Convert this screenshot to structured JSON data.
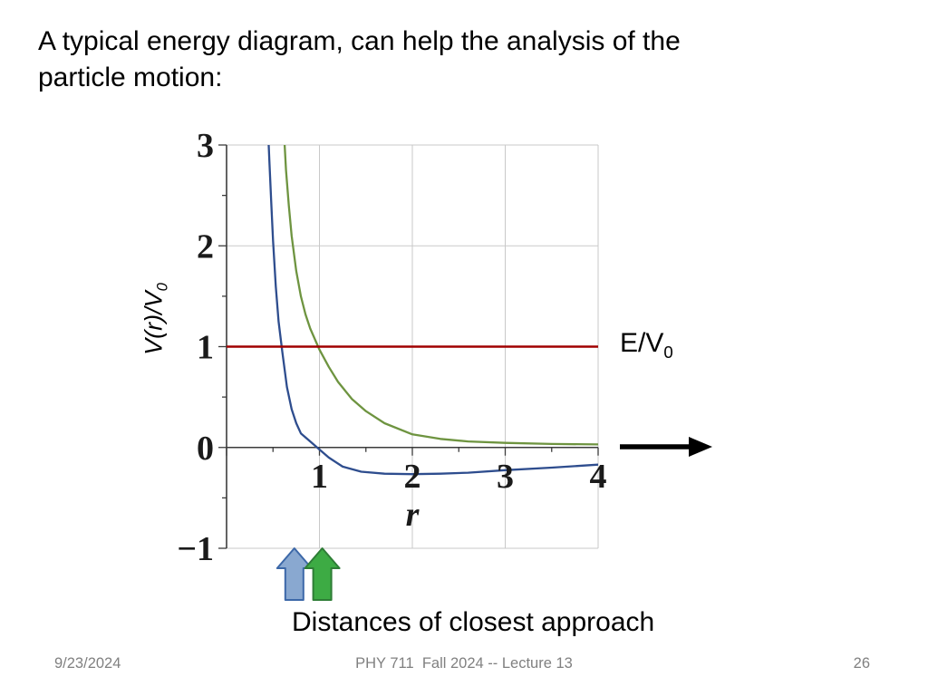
{
  "slide": {
    "title_lines": [
      "A typical energy diagram, can help the analysis of the",
      "particle motion:"
    ],
    "caption": "Distances of closest approach",
    "energy_label": {
      "main": "E/V",
      "sub": "0"
    },
    "footer": {
      "date": "9/23/2024",
      "course": "PHY 711  Fall 2024 -- Lecture 13",
      "page": "26"
    }
  },
  "chart_data": {
    "type": "line",
    "title": "",
    "xlabel": "r",
    "ylabel": "V(r)/V0",
    "ylabel_display": {
      "main": "V(r)/V",
      "sub": "0"
    },
    "xlim": [
      0,
      4
    ],
    "ylim": [
      -1,
      3
    ],
    "x_ticks": [
      1,
      2,
      3,
      4
    ],
    "y_ticks": [
      3,
      2,
      1,
      0,
      -1
    ],
    "grid": true,
    "legend": "none",
    "series": [
      {
        "name": "repulsive-potential-curve-green",
        "color": "#6E9440",
        "width": 2.3,
        "x": [
          0.6,
          0.62,
          0.64,
          0.67,
          0.7,
          0.75,
          0.8,
          0.85,
          0.9,
          1.0,
          1.1,
          1.2,
          1.35,
          1.5,
          1.7,
          2.0,
          2.3,
          2.6,
          3.0,
          3.5,
          4.0
        ],
        "y": [
          3.45,
          3.1,
          2.75,
          2.4,
          2.1,
          1.75,
          1.5,
          1.32,
          1.18,
          0.97,
          0.8,
          0.65,
          0.48,
          0.36,
          0.24,
          0.13,
          0.085,
          0.06,
          0.045,
          0.035,
          0.03
        ]
      },
      {
        "name": "potential-well-curve-blue",
        "color": "#2E4D8E",
        "width": 2.3,
        "x": [
          0.44,
          0.46,
          0.48,
          0.5,
          0.53,
          0.56,
          0.6,
          0.65,
          0.7,
          0.75,
          0.8,
          0.9,
          1.0,
          1.1,
          1.25,
          1.45,
          1.7,
          2.0,
          2.3,
          2.6,
          3.0,
          3.5,
          4.0
        ],
        "y": [
          3.3,
          2.85,
          2.45,
          2.05,
          1.6,
          1.25,
          0.95,
          0.6,
          0.38,
          0.24,
          0.14,
          0.06,
          -0.02,
          -0.1,
          -0.19,
          -0.24,
          -0.26,
          -0.265,
          -0.26,
          -0.25,
          -0.225,
          -0.2,
          -0.17
        ]
      },
      {
        "name": "energy-level-line",
        "color": "#A00000",
        "width": 2.6,
        "x": [
          0,
          4
        ],
        "y": [
          1,
          1
        ]
      }
    ],
    "annotations": [
      {
        "name": "closest-approach-arrow-blue",
        "type": "block-arrow-up",
        "x": 0.73,
        "fill": "#89A8D0",
        "stroke": "#3C68A8"
      },
      {
        "name": "closest-approach-arrow-green",
        "type": "block-arrow-up",
        "x": 1.03,
        "fill": "#3DAB44",
        "stroke": "#2E7D36"
      }
    ]
  }
}
